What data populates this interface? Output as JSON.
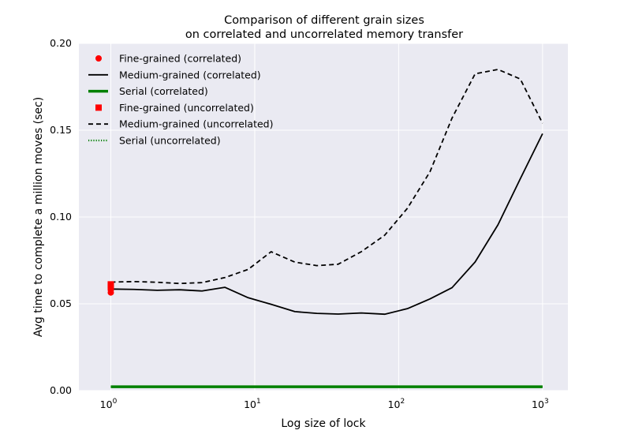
{
  "chart_data": {
    "type": "line",
    "title_line1": "Comparison of different grain sizes",
    "title_line2": "on correlated and uncorrelated memory transfer",
    "xlabel": "Log size of lock",
    "ylabel": "Avg time to complete a million moves (sec)",
    "xscale": "log",
    "xlim": [
      0.6,
      1500
    ],
    "ylim": [
      0,
      0.2
    ],
    "x_ticks": [
      {
        "value": 1,
        "base": "10",
        "exp": "0"
      },
      {
        "value": 10,
        "base": "10",
        "exp": "1"
      },
      {
        "value": 100,
        "base": "10",
        "exp": "2"
      },
      {
        "value": 1000,
        "base": "10",
        "exp": "3"
      }
    ],
    "y_ticks": [
      {
        "value": 0,
        "label": "0.00"
      },
      {
        "value": 0.05,
        "label": "0.05"
      },
      {
        "value": 0.1,
        "label": "0.10"
      },
      {
        "value": 0.15,
        "label": "0.15"
      },
      {
        "value": 0.2,
        "label": "0.20"
      }
    ],
    "grid": true,
    "legend_position": "top-left",
    "background": "#eaeaf2",
    "series": [
      {
        "name": "Fine-grained (correlated)",
        "marker": "circle",
        "color": "#ff0000",
        "points": [
          [
            1,
            0.0565
          ],
          [
            1,
            0.058
          ],
          [
            1,
            0.0595
          ]
        ]
      },
      {
        "name": "Medium-grained (correlated)",
        "line": "solid",
        "color": "#000000",
        "points": [
          [
            1,
            0.0585
          ],
          [
            1.45,
            0.0583
          ],
          [
            2.1,
            0.0578
          ],
          [
            3.0,
            0.0581
          ],
          [
            4.3,
            0.0574
          ],
          [
            6.2,
            0.0595
          ],
          [
            9.0,
            0.0535
          ],
          [
            13.0,
            0.0497
          ],
          [
            19.0,
            0.0455
          ],
          [
            27.0,
            0.0445
          ],
          [
            38.0,
            0.0441
          ],
          [
            55.0,
            0.0447
          ],
          [
            80.0,
            0.044
          ],
          [
            115.0,
            0.0472
          ],
          [
            165.0,
            0.0528
          ],
          [
            235.0,
            0.0593
          ],
          [
            340.0,
            0.0741
          ],
          [
            490.0,
            0.0955
          ],
          [
            700.0,
            0.122
          ],
          [
            1000.0,
            0.148
          ]
        ]
      },
      {
        "name": "Serial (correlated)",
        "line": "solid-thick",
        "color": "#008000",
        "points": [
          [
            1,
            0.0022
          ],
          [
            1000,
            0.0022
          ]
        ]
      },
      {
        "name": "Fine-grained (uncorrelated)",
        "marker": "square",
        "color": "#ff0000",
        "points": [
          [
            1,
            0.06
          ],
          [
            1,
            0.0612
          ]
        ]
      },
      {
        "name": "Medium-grained (uncorrelated)",
        "line": "dashed",
        "color": "#000000",
        "points": [
          [
            1,
            0.0625
          ],
          [
            1.45,
            0.0628
          ],
          [
            2.1,
            0.0624
          ],
          [
            3.0,
            0.0617
          ],
          [
            4.3,
            0.0622
          ],
          [
            6.2,
            0.0651
          ],
          [
            9.0,
            0.0698
          ],
          [
            13.0,
            0.08
          ],
          [
            19.0,
            0.074
          ],
          [
            27.0,
            0.072
          ],
          [
            38.0,
            0.0728
          ],
          [
            55.0,
            0.08
          ],
          [
            80.0,
            0.0895
          ],
          [
            115.0,
            0.105
          ],
          [
            165.0,
            0.126
          ],
          [
            235.0,
            0.157
          ],
          [
            340.0,
            0.1825
          ],
          [
            490.0,
            0.185
          ],
          [
            700.0,
            0.1795
          ],
          [
            1000.0,
            0.154
          ]
        ]
      },
      {
        "name": "Serial (uncorrelated)",
        "line": "dotted",
        "color": "#008000",
        "points": [
          [
            1,
            0.0022
          ],
          [
            1000,
            0.0022
          ]
        ]
      }
    ]
  }
}
